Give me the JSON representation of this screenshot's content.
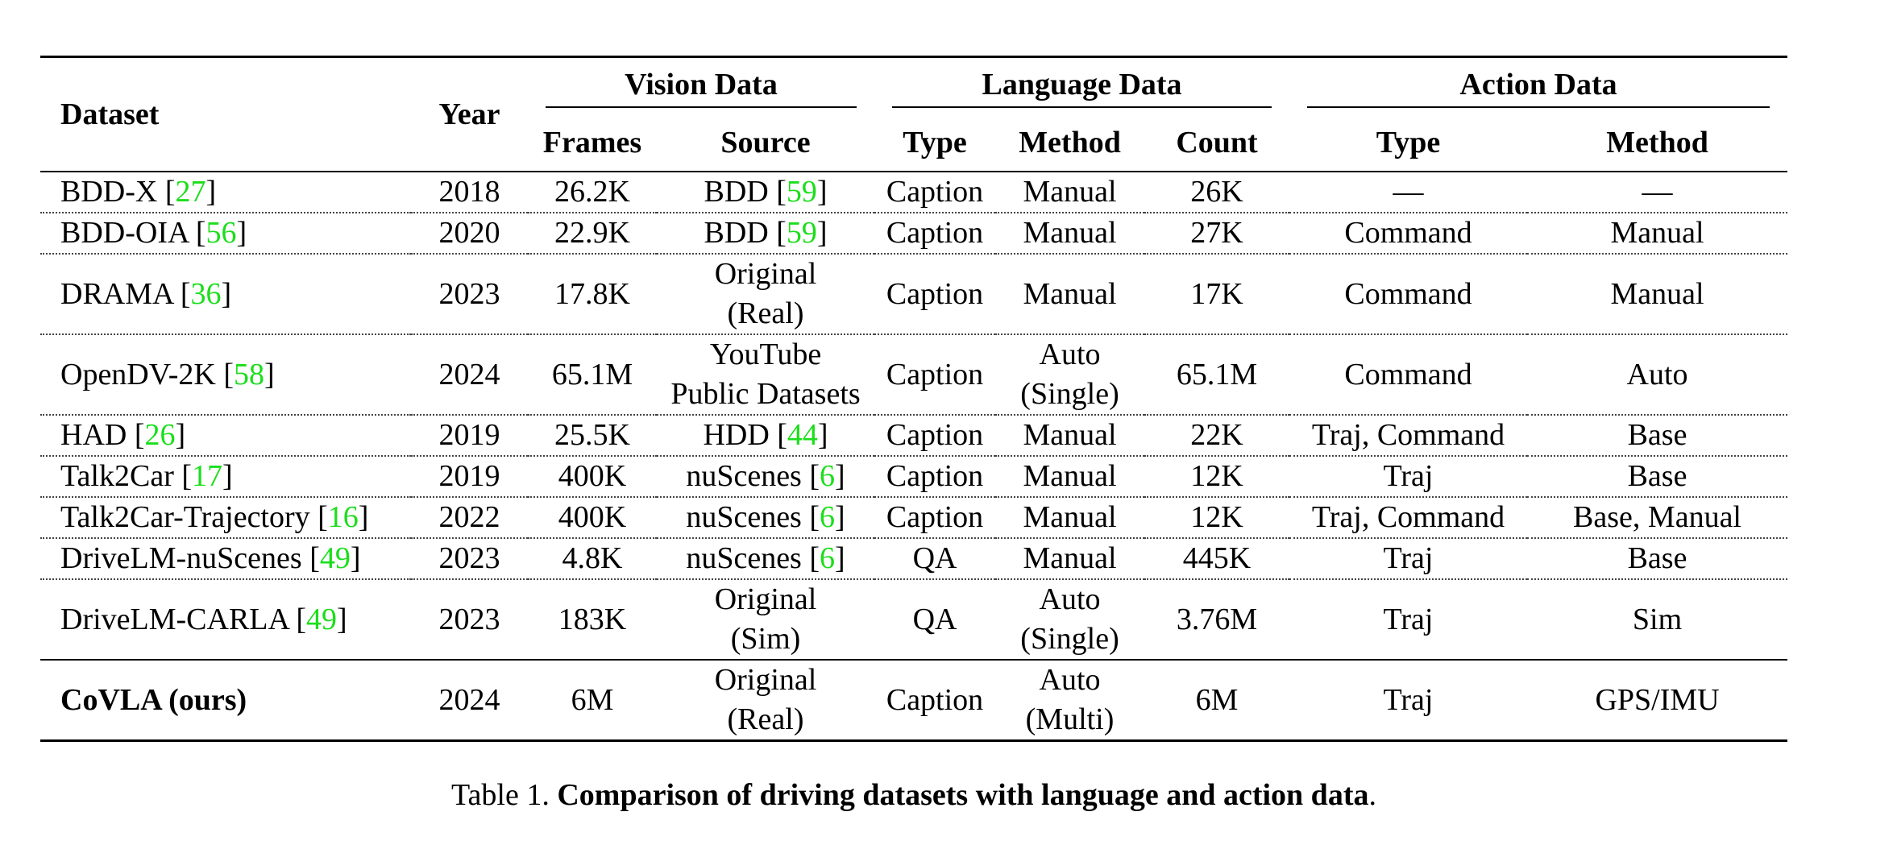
{
  "table": {
    "headers": {
      "dataset": "Dataset",
      "year": "Year",
      "vision_group": "Vision Data",
      "language_group": "Language Data",
      "action_group": "Action Data",
      "frames": "Frames",
      "source": "Source",
      "lang_type": "Type",
      "lang_method": "Method",
      "count": "Count",
      "act_type": "Type",
      "act_method": "Method"
    },
    "rows": [
      {
        "name": "BDD-X",
        "ref": "27",
        "year": "2018",
        "frames": "26.2K",
        "source": "BDD",
        "source_ref": "59",
        "source_line2": "",
        "lang_type": "Caption",
        "lang_method": "Manual",
        "lang_method_line2": "",
        "count": "26K",
        "act_type": "—",
        "act_method": "—"
      },
      {
        "name": "BDD-OIA",
        "ref": "56",
        "year": "2020",
        "frames": "22.9K",
        "source": "BDD",
        "source_ref": "59",
        "source_line2": "",
        "lang_type": "Caption",
        "lang_method": "Manual",
        "lang_method_line2": "",
        "count": "27K",
        "act_type": "Command",
        "act_method": "Manual"
      },
      {
        "name": "DRAMA",
        "ref": "36",
        "year": "2023",
        "frames": "17.8K",
        "source": "Original",
        "source_ref": "",
        "source_line2": "(Real)",
        "lang_type": "Caption",
        "lang_method": "Manual",
        "lang_method_line2": "",
        "count": "17K",
        "act_type": "Command",
        "act_method": "Manual"
      },
      {
        "name": "OpenDV-2K",
        "ref": "58",
        "year": "2024",
        "frames": "65.1M",
        "source": "YouTube",
        "source_ref": "",
        "source_line2": "Public Datasets",
        "lang_type": "Caption",
        "lang_method": "Auto",
        "lang_method_line2": "(Single)",
        "count": "65.1M",
        "act_type": "Command",
        "act_method": "Auto"
      },
      {
        "name": "HAD",
        "ref": "26",
        "year": "2019",
        "frames": "25.5K",
        "source": "HDD",
        "source_ref": "44",
        "source_line2": "",
        "lang_type": "Caption",
        "lang_method": "Manual",
        "lang_method_line2": "",
        "count": "22K",
        "act_type": "Traj, Command",
        "act_method": "Base"
      },
      {
        "name": "Talk2Car",
        "ref": "17",
        "year": "2019",
        "frames": "400K",
        "source": "nuScenes",
        "source_ref": "6",
        "source_line2": "",
        "lang_type": "Caption",
        "lang_method": "Manual",
        "lang_method_line2": "",
        "count": "12K",
        "act_type": "Traj",
        "act_method": "Base"
      },
      {
        "name": "Talk2Car-Trajectory",
        "ref": "16",
        "year": "2022",
        "frames": "400K",
        "source": "nuScenes",
        "source_ref": "6",
        "source_line2": "",
        "lang_type": "Caption",
        "lang_method": "Manual",
        "lang_method_line2": "",
        "count": "12K",
        "act_type": "Traj, Command",
        "act_method": "Base, Manual"
      },
      {
        "name": "DriveLM-nuScenes",
        "ref": "49",
        "year": "2023",
        "frames": "4.8K",
        "source": "nuScenes",
        "source_ref": "6",
        "source_line2": "",
        "lang_type": "QA",
        "lang_method": "Manual",
        "lang_method_line2": "",
        "count": "445K",
        "act_type": "Traj",
        "act_method": "Base"
      },
      {
        "name": "DriveLM-CARLA",
        "ref": "49",
        "year": "2023",
        "frames": "183K",
        "source": "Original",
        "source_ref": "",
        "source_line2": "(Sim)",
        "lang_type": "QA",
        "lang_method": "Auto",
        "lang_method_line2": "(Single)",
        "count": "3.76M",
        "act_type": "Traj",
        "act_method": "Sim"
      }
    ],
    "ours": {
      "name": "CoVLA (ours)",
      "year": "2024",
      "frames": "6M",
      "source": "Original",
      "source_line2": "(Real)",
      "lang_type": "Caption",
      "lang_method": "Auto",
      "lang_method_line2": "(Multi)",
      "count": "6M",
      "act_type": "Traj",
      "act_method": "GPS/IMU"
    }
  },
  "caption": {
    "label": "Table 1.",
    "text": "Comparison of driving datasets with language and action data",
    "end": "."
  },
  "colors": {
    "citation": "#1bde1b"
  }
}
